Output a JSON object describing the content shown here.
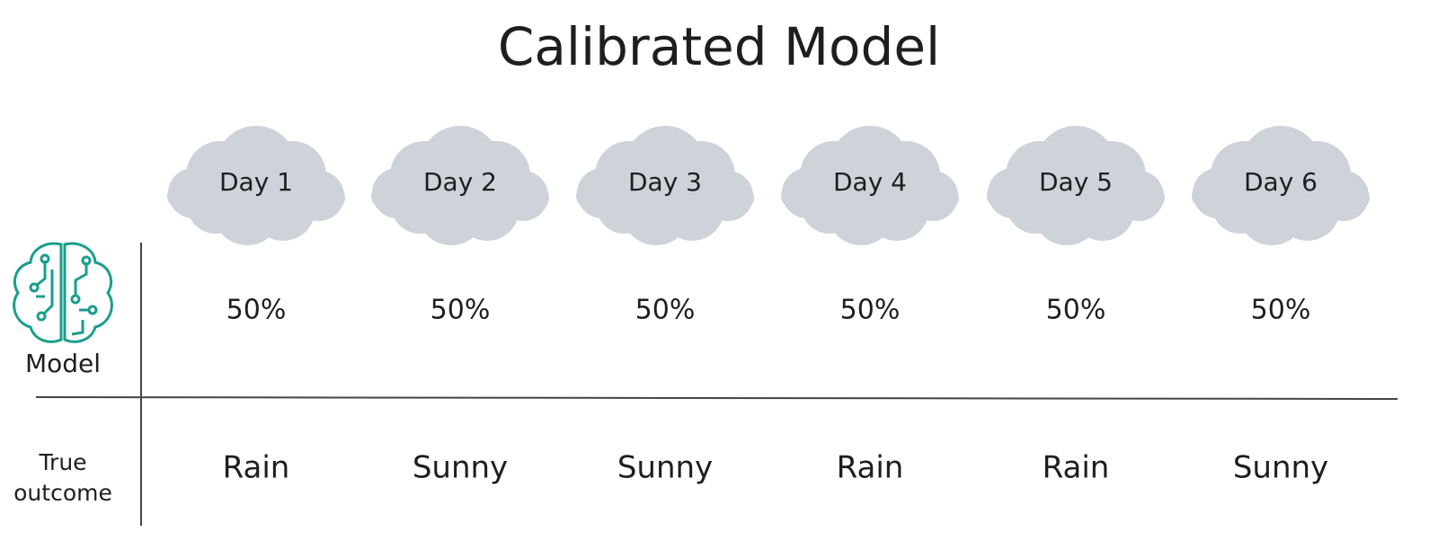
{
  "title": "Calibrated Model",
  "days": [
    "Day 1",
    "Day 2",
    "Day 3",
    "Day 4",
    "Day 5",
    "Day 6"
  ],
  "model_row": {
    "label": "Model",
    "predictions": [
      "50%",
      "50%",
      "50%",
      "50%",
      "50%",
      "50%"
    ]
  },
  "outcome_row": {
    "label": "True outcome",
    "outcomes": [
      {
        "label": "Rain",
        "color": "#1f67ad"
      },
      {
        "label": "Sunny",
        "color": "#e37c12"
      },
      {
        "label": "Sunny",
        "color": "#e37c12"
      },
      {
        "label": "Rain",
        "color": "#1f67ad"
      },
      {
        "label": "Rain",
        "color": "#1f67ad"
      },
      {
        "label": "Sunny",
        "color": "#e37c12"
      }
    ]
  }
}
